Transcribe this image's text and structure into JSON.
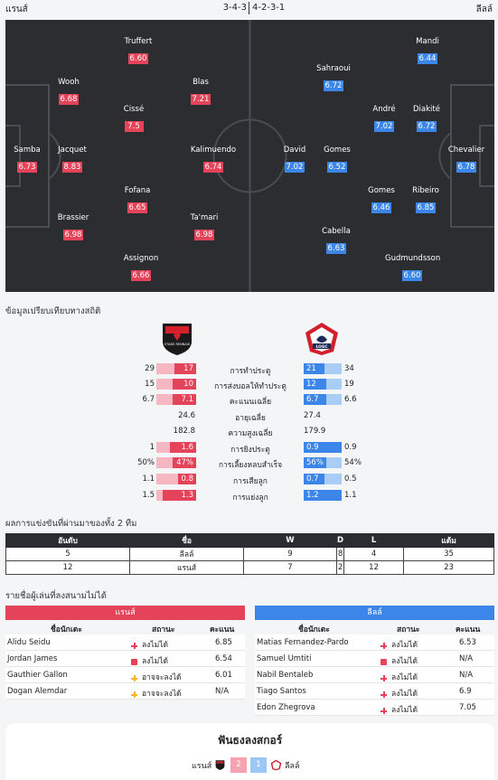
{
  "header": {
    "home_team": "แรนส์",
    "away_team": "ลีลล์",
    "home_formation": "3-4-3",
    "away_formation": "4-2-3-1"
  },
  "lineup": {
    "home": [
      {
        "name": "Samba",
        "rating": "6.73"
      },
      {
        "name": "Wooh",
        "rating": "6.68"
      },
      {
        "name": "Jacquet",
        "rating": "8.83"
      },
      {
        "name": "Brassier",
        "rating": "6.98"
      },
      {
        "name": "Truffert",
        "rating": "6.60"
      },
      {
        "name": "Cissé",
        "rating": "7.5"
      },
      {
        "name": "Fofana",
        "rating": "6.65"
      },
      {
        "name": "Assignon",
        "rating": "6.66"
      },
      {
        "name": "Blas",
        "rating": "7.21"
      },
      {
        "name": "Kalimuendo",
        "rating": "6.74"
      },
      {
        "name": "Ta'mari",
        "rating": "6.98"
      }
    ],
    "away": [
      {
        "name": "Chevalier",
        "rating": "6.78"
      },
      {
        "name": "Mandi",
        "rating": "6.44"
      },
      {
        "name": "Diakité",
        "rating": "6.72"
      },
      {
        "name": "Ribeiro",
        "rating": "6.85"
      },
      {
        "name": "Gudmundsson",
        "rating": "6.60"
      },
      {
        "name": "André",
        "rating": "7.02"
      },
      {
        "name": "Gomes",
        "rating": "6.46"
      },
      {
        "name": "Sahraoui",
        "rating": "6.72"
      },
      {
        "name": "Gomes",
        "rating": "6.52"
      },
      {
        "name": "Cabella",
        "rating": "6.63"
      },
      {
        "name": "David",
        "rating": "7.02"
      }
    ]
  },
  "stats_section": {
    "title": "ข้อมูลเปรียบเทียบทางสถิติ",
    "home_logo_text": "STADE RENNAIS",
    "away_logo_text": "LOSC",
    "rows": [
      {
        "label": "การทำประตู",
        "home_total": "29",
        "home_avg": "17",
        "away_avg": "21",
        "away_total": "34",
        "home_fill": 0.55,
        "away_fill": 0.55,
        "bar": true
      },
      {
        "label": "การส่งบอลให้ทำประตู",
        "home_total": "15",
        "home_avg": "10",
        "away_avg": "12",
        "away_total": "19",
        "home_fill": 0.6,
        "away_fill": 0.6,
        "bar": true
      },
      {
        "label": "คะแนนเฉลี่ย",
        "home_total": "6.7",
        "home_avg": "7.1",
        "away_avg": "6.7",
        "away_total": "6.6",
        "home_fill": 0.6,
        "away_fill": 0.6,
        "bar": true
      },
      {
        "label": "อายุเฉลี่ย",
        "home_value": "24.6",
        "away_value": "27.4",
        "bar": false
      },
      {
        "label": "ความสูงเฉลี่ย",
        "home_value": "182.8",
        "away_value": "179.9",
        "bar": false
      },
      {
        "label": "การยิงประตู",
        "home_total": "1",
        "home_avg": "1.6",
        "away_avg": "0.9",
        "away_total": "0.9",
        "home_fill": 0.65,
        "away_fill": 1.0,
        "bar": true
      },
      {
        "label": "การเลี้ยงหลบสำเร็จ",
        "home_total": "50%",
        "home_avg": "47%",
        "away_avg": "56%",
        "away_total": "54%",
        "home_fill": 0.6,
        "away_fill": 0.6,
        "bar": true
      },
      {
        "label": "การเสียลูก",
        "home_total": "1.1",
        "home_avg": "0.8",
        "away_avg": "0.7",
        "away_total": "0.5",
        "home_fill": 0.45,
        "away_fill": 0.55,
        "bar": true
      },
      {
        "label": "การแย่งลูก",
        "home_total": "1.5",
        "home_avg": "1.3",
        "away_avg": "1.2",
        "away_total": "1.1",
        "home_fill": 0.85,
        "away_fill": 1.0,
        "bar": true
      }
    ]
  },
  "h2h": {
    "title": "ผลการแข่งขันที่ผ่านมาของทั้ง 2 ทีม",
    "columns": [
      "อันดับ",
      "ชื่อ",
      "W",
      "D",
      "L",
      "แต้ม"
    ],
    "rows": [
      [
        "5",
        "ลีลล์",
        "9",
        "8",
        "4",
        "35"
      ],
      [
        "12",
        "แรนส์",
        "7",
        "2",
        "12",
        "23"
      ]
    ]
  },
  "unavailable": {
    "title": "รายชื่อผู้เล่นที่ลงสนามไม่ได้",
    "col_player": "ชื่อนักเตะ",
    "col_status": "สถานะ",
    "col_score": "คะแนน",
    "home": {
      "team": "แรนส์",
      "color": "#e4435a",
      "players": [
        {
          "name": "Alidu Seidu",
          "icon": "injury-cross",
          "status": "ลงไม่ได้",
          "score": "6.85"
        },
        {
          "name": "Jordan James",
          "icon": "red-card",
          "status": "ลงไม่ได้",
          "score": "6.54"
        },
        {
          "name": "Gauthier Gallon",
          "icon": "doubtful-cross",
          "status": "อาจจะลงได้",
          "score": "6.01"
        },
        {
          "name": "Dogan Alemdar",
          "icon": "doubtful-cross",
          "status": "อาจจะลงได้",
          "score": "N/A"
        }
      ]
    },
    "away": {
      "team": "ลีลล์",
      "color": "#3b86e8",
      "players": [
        {
          "name": "Matias Fernandez-Pardo",
          "icon": "injury-cross",
          "status": "ลงไม่ได้",
          "score": "6.53"
        },
        {
          "name": "Samuel Umtiti",
          "icon": "red-card",
          "status": "ลงไม่ได้",
          "score": "N/A"
        },
        {
          "name": "Nabil Bentaleb",
          "icon": "injury-cross",
          "status": "ลงไม่ได้",
          "score": "N/A"
        },
        {
          "name": "Tiago Santos",
          "icon": "injury-cross",
          "status": "ลงไม่ได้",
          "score": "6.9"
        },
        {
          "name": "Edon Zhegrova",
          "icon": "injury-cross",
          "status": "ลงไม่ได้",
          "score": "7.05"
        }
      ]
    }
  },
  "fans": {
    "title": "ฟันธงลงสกอร์",
    "home_team": "แรนส์",
    "away_team": "ลีลล์",
    "home_score": "2",
    "away_score": "1"
  },
  "colors": {
    "home": "#e4435a",
    "away": "#3b86e8",
    "pitch": "#2b2d31"
  }
}
